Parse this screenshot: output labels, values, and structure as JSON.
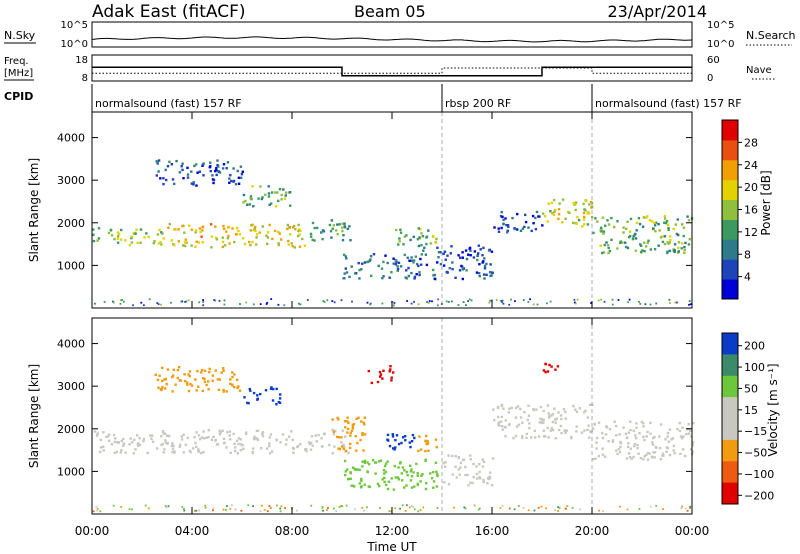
{
  "header": {
    "title": "Adak East (fitACF)",
    "beam": "Beam 05",
    "date": "23/Apr/2014"
  },
  "noise_panel": {
    "left_label": "N.Sky",
    "left_ticks": [
      "10^5",
      "10^0"
    ],
    "right_label": "N.Search",
    "right_ticks": [
      "10^5",
      "10^0"
    ]
  },
  "freq_panel": {
    "left_label_line1": "Freq.",
    "left_label_line2": "[MHz]",
    "left_ticks": [
      "18",
      "8"
    ],
    "right_label": "Nave",
    "right_ticks": [
      "60",
      "0"
    ],
    "freq_steps": [
      {
        "t": 0,
        "v": 13.3
      },
      {
        "t": 10.0,
        "v": 10.0
      },
      {
        "t": 18.0,
        "v": 13.3
      },
      {
        "t": 24.0,
        "v": 13.3
      }
    ],
    "nave_steps": [
      {
        "t": 0,
        "v": 18
      },
      {
        "t": 10.0,
        "v": 18
      },
      {
        "t": 14.0,
        "v": 30
      },
      {
        "t": 18.0,
        "v": 30
      },
      {
        "t": 20.0,
        "v": 18
      },
      {
        "t": 24.0,
        "v": 18
      }
    ]
  },
  "cpid": {
    "label": "CPID",
    "segments": [
      {
        "name": "normalsound (fast) 157 RF",
        "start": 0,
        "end": 14.0
      },
      {
        "name": "rbsp 200 RF",
        "start": 14.0,
        "end": 20.0
      },
      {
        "name": "normalsound (fast) 157 RF",
        "start": 20.0,
        "end": 24.0
      }
    ]
  },
  "chart_data": [
    {
      "type": "heatmap",
      "quantity": "power",
      "xlabel": "Time UT",
      "ylabel": "Slant Range [km]",
      "xlim": [
        0,
        24
      ],
      "ylim": [
        0,
        4600
      ],
      "x_ticks": [
        "00:00",
        "04:00",
        "08:00",
        "12:00",
        "16:00",
        "20:00",
        "00:00"
      ],
      "y_ticks": [
        1000,
        2000,
        3000,
        4000
      ],
      "colorbar": {
        "label": "Power [dB]",
        "ticks": [
          4,
          8,
          12,
          16,
          20,
          24,
          28
        ],
        "range": [
          0,
          32
        ]
      },
      "echo_regions": [
        {
          "t0": 0.0,
          "t1": 3.0,
          "r0": 1500,
          "r1": 1900,
          "value": 16
        },
        {
          "t0": 3.0,
          "t1": 8.5,
          "r0": 1450,
          "r1": 2000,
          "value": 20
        },
        {
          "t0": 8.5,
          "t1": 10.3,
          "r0": 1600,
          "r1": 2100,
          "value": 12
        },
        {
          "t0": 2.5,
          "t1": 6.0,
          "r0": 2900,
          "r1": 3500,
          "value": 6
        },
        {
          "t0": 6.0,
          "t1": 8.0,
          "r0": 2400,
          "r1": 2900,
          "value": 14
        },
        {
          "t0": 10.0,
          "t1": 13.0,
          "r0": 700,
          "r1": 1300,
          "value": 8
        },
        {
          "t0": 12.0,
          "t1": 14.0,
          "r0": 1500,
          "r1": 1900,
          "value": 14
        },
        {
          "t0": 13.0,
          "t1": 16.0,
          "r0": 700,
          "r1": 1500,
          "value": 6
        },
        {
          "t0": 16.0,
          "t1": 18.0,
          "r0": 1800,
          "r1": 2300,
          "value": 6
        },
        {
          "t0": 18.0,
          "t1": 20.0,
          "r0": 1900,
          "r1": 2600,
          "value": 18
        },
        {
          "t0": 20.0,
          "t1": 24.0,
          "r0": 1300,
          "r1": 2200,
          "value": 14
        }
      ]
    },
    {
      "type": "heatmap",
      "quantity": "velocity",
      "xlabel": "Time UT",
      "ylabel": "Slant Range [km]",
      "xlim": [
        0,
        24
      ],
      "ylim": [
        0,
        4600
      ],
      "x_ticks": [
        "00:00",
        "04:00",
        "08:00",
        "12:00",
        "16:00",
        "20:00",
        "00:00"
      ],
      "y_ticks": [
        1000,
        2000,
        3000,
        4000
      ],
      "colorbar": {
        "label": "Velocity [m s⁻¹]",
        "ticks": [
          "200",
          "100",
          "50",
          "15",
          "−15",
          "−50",
          "−100",
          "−200"
        ]
      },
      "echo_regions": [
        {
          "t0": 0.0,
          "t1": 10.3,
          "r0": 1450,
          "r1": 2000,
          "value": 0
        },
        {
          "t0": 2.5,
          "t1": 6.0,
          "r0": 2900,
          "r1": 3500,
          "value": -60
        },
        {
          "t0": 6.0,
          "t1": 7.5,
          "r0": 2600,
          "r1": 3000,
          "value": 200
        },
        {
          "t0": 9.5,
          "t1": 11.0,
          "r0": 1500,
          "r1": 2300,
          "value": -60
        },
        {
          "t0": 11.0,
          "t1": 12.0,
          "r0": 3100,
          "r1": 3500,
          "value": -200
        },
        {
          "t0": 10.0,
          "t1": 14.0,
          "r0": 600,
          "r1": 1300,
          "value": 40
        },
        {
          "t0": 11.5,
          "t1": 13.0,
          "r0": 1500,
          "r1": 1900,
          "value": 200
        },
        {
          "t0": 13.0,
          "t1": 14.0,
          "r0": 1500,
          "r1": 1900,
          "value": -60
        },
        {
          "t0": 14.0,
          "t1": 16.0,
          "r0": 700,
          "r1": 1400,
          "value": 0
        },
        {
          "t0": 16.0,
          "t1": 20.0,
          "r0": 1800,
          "r1": 2600,
          "value": 0
        },
        {
          "t0": 18.0,
          "t1": 18.6,
          "r0": 3300,
          "r1": 3700,
          "value": -200
        },
        {
          "t0": 20.0,
          "t1": 24.0,
          "r0": 1300,
          "r1": 2200,
          "value": 0
        }
      ]
    }
  ],
  "colors": {
    "power_scale": [
      "#0000d8",
      "#1f43b8",
      "#2d7a8a",
      "#3c9a60",
      "#8fbf3c",
      "#e4d200",
      "#f0a000",
      "#e85010",
      "#e00000"
    ],
    "velocity_scale": [
      "#e00000",
      "#ee5a10",
      "#f29a10",
      "#c8c8c0",
      "#c8c8c0",
      "#6cc83a",
      "#3b8a6a",
      "#0a3cc8"
    ]
  }
}
